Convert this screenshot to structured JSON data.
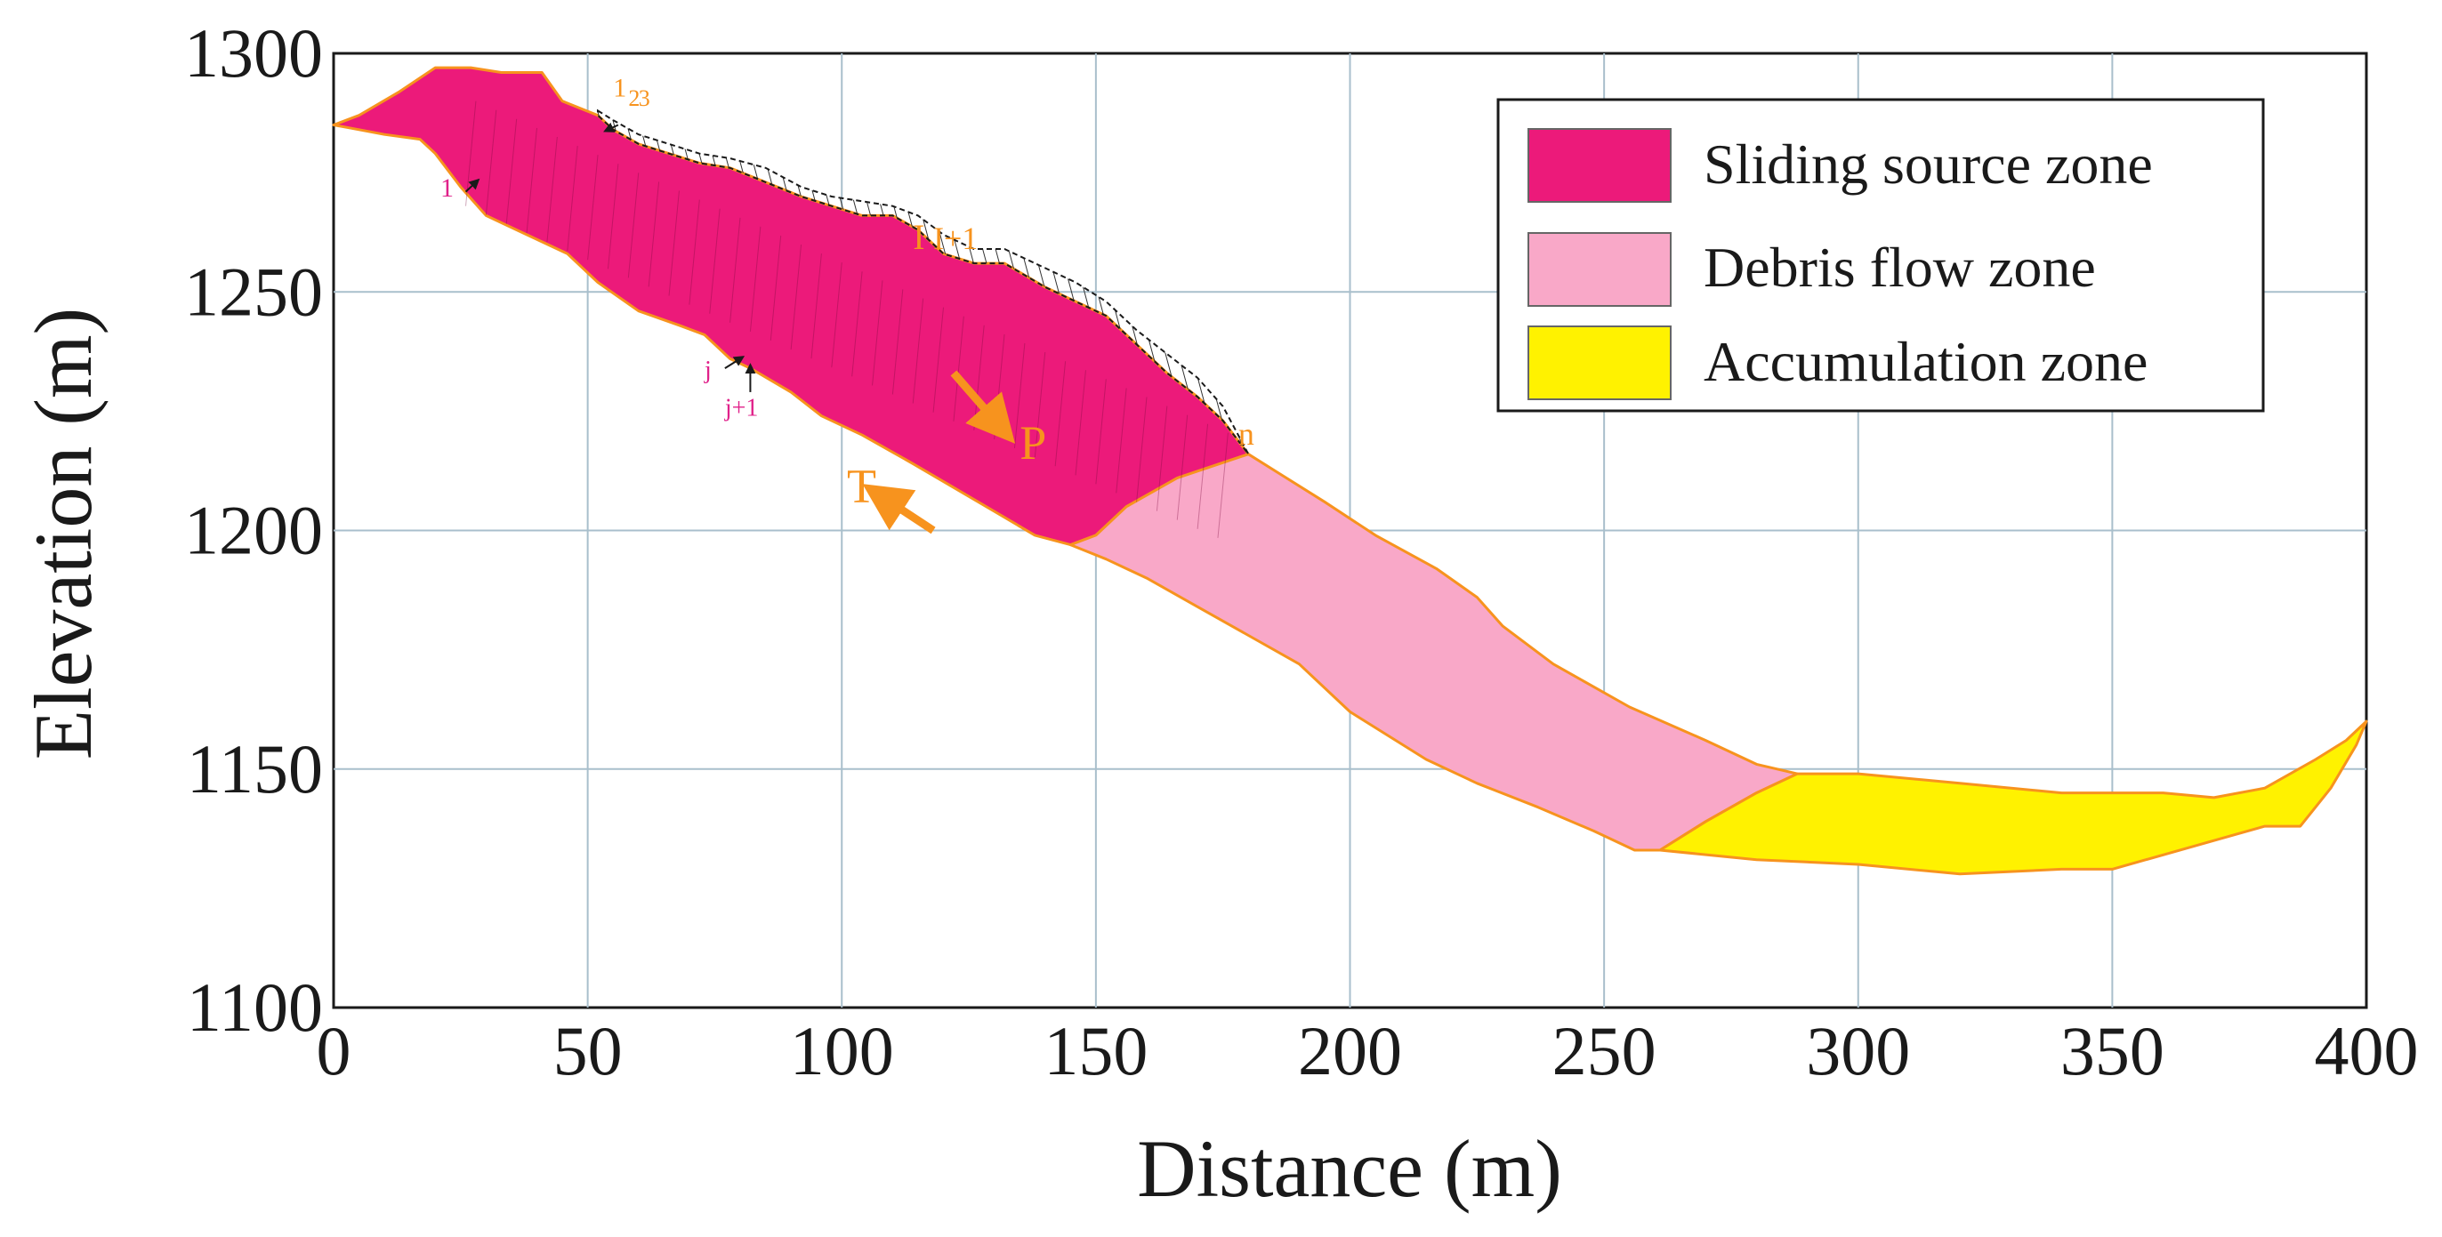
{
  "chart_data": {
    "type": "area",
    "title": "",
    "xlabel": "Distance (m)",
    "ylabel": "Elevation (m)",
    "xlim": [
      0,
      400
    ],
    "ylim": [
      1100,
      1300
    ],
    "xticks": [
      0,
      50,
      100,
      150,
      200,
      250,
      300,
      350,
      400
    ],
    "yticks": [
      1100,
      1150,
      1200,
      1250,
      1300
    ],
    "grid": true,
    "legend_position": "top-right",
    "colors": {
      "source": "#ec1a7a",
      "debris": "#f9a8c8",
      "accumulation": "#fff200",
      "boundary": "#f7931e",
      "annotation": "#f7931e",
      "annotation_pink": "#e0218a",
      "grid": "#a9bfcc"
    },
    "series": [
      {
        "name": "Sliding source zone",
        "color": "#ec1a7a",
        "points": [
          [
            0,
            1285
          ],
          [
            5,
            1287
          ],
          [
            13,
            1292
          ],
          [
            20,
            1297
          ],
          [
            27,
            1297
          ],
          [
            33,
            1296
          ],
          [
            41,
            1296
          ],
          [
            45,
            1290
          ],
          [
            52,
            1287
          ],
          [
            55,
            1284
          ],
          [
            60,
            1281
          ],
          [
            66,
            1279
          ],
          [
            72,
            1277
          ],
          [
            78,
            1276
          ],
          [
            85,
            1273
          ],
          [
            92,
            1270
          ],
          [
            98,
            1268
          ],
          [
            104,
            1266
          ],
          [
            110,
            1266
          ],
          [
            115,
            1263
          ],
          [
            120,
            1258
          ],
          [
            126,
            1256
          ],
          [
            132,
            1256
          ],
          [
            140,
            1251
          ],
          [
            146,
            1248
          ],
          [
            152,
            1245
          ],
          [
            158,
            1239
          ],
          [
            164,
            1233
          ],
          [
            170,
            1228
          ],
          [
            175,
            1223
          ],
          [
            180,
            1216
          ],
          [
            166,
            1211
          ],
          [
            156,
            1205
          ],
          [
            150,
            1199
          ],
          [
            145,
            1197
          ],
          [
            138,
            1199
          ],
          [
            130,
            1204
          ],
          [
            122,
            1209
          ],
          [
            114,
            1214
          ],
          [
            104,
            1220
          ],
          [
            96,
            1224
          ],
          [
            90,
            1229
          ],
          [
            82,
            1234
          ],
          [
            78,
            1236
          ],
          [
            73,
            1241
          ],
          [
            68,
            1243
          ],
          [
            60,
            1246
          ],
          [
            52,
            1252
          ],
          [
            46,
            1258
          ],
          [
            38,
            1262
          ],
          [
            30,
            1266
          ],
          [
            25,
            1272
          ],
          [
            20,
            1279
          ],
          [
            17,
            1282
          ],
          [
            10,
            1283
          ],
          [
            5,
            1284
          ],
          [
            0,
            1285
          ]
        ]
      },
      {
        "name": "Debris flow zone",
        "color": "#f9a8c8",
        "points": [
          [
            145,
            1197
          ],
          [
            150,
            1199
          ],
          [
            156,
            1205
          ],
          [
            166,
            1211
          ],
          [
            180,
            1216
          ],
          [
            186,
            1212
          ],
          [
            195,
            1206
          ],
          [
            205,
            1199
          ],
          [
            217,
            1192
          ],
          [
            225,
            1186
          ],
          [
            230,
            1180
          ],
          [
            240,
            1172
          ],
          [
            255,
            1163
          ],
          [
            270,
            1156
          ],
          [
            280,
            1151
          ],
          [
            288,
            1149
          ],
          [
            280,
            1145
          ],
          [
            270,
            1139
          ],
          [
            261,
            1133
          ],
          [
            256,
            1133
          ],
          [
            248,
            1137
          ],
          [
            237,
            1142
          ],
          [
            225,
            1147
          ],
          [
            215,
            1152
          ],
          [
            200,
            1162
          ],
          [
            190,
            1172
          ],
          [
            180,
            1178
          ],
          [
            170,
            1184
          ],
          [
            160,
            1190
          ],
          [
            152,
            1194
          ],
          [
            145,
            1197
          ]
        ]
      },
      {
        "name": "Accumulation zone",
        "color": "#fff200",
        "points": [
          [
            261,
            1133
          ],
          [
            270,
            1139
          ],
          [
            280,
            1145
          ],
          [
            288,
            1149
          ],
          [
            300,
            1149
          ],
          [
            320,
            1147
          ],
          [
            340,
            1145
          ],
          [
            360,
            1145
          ],
          [
            370,
            1144
          ],
          [
            380,
            1146
          ],
          [
            390,
            1152
          ],
          [
            396,
            1156
          ],
          [
            400,
            1160
          ],
          [
            398,
            1155
          ],
          [
            393,
            1146
          ],
          [
            387,
            1138
          ],
          [
            380,
            1138
          ],
          [
            370,
            1135
          ],
          [
            350,
            1129
          ],
          [
            340,
            1129
          ],
          [
            320,
            1128
          ],
          [
            300,
            1130
          ],
          [
            280,
            1131
          ],
          [
            261,
            1133
          ]
        ]
      }
    ],
    "legend": [
      {
        "label": "Sliding source zone",
        "color": "#ec1a7a"
      },
      {
        "label": "Debris flow zone",
        "color": "#f9a8c8"
      },
      {
        "label": "Accumulation zone",
        "color": "#fff200"
      }
    ],
    "hatched_top_layer": {
      "name": "surface layer (hatched)",
      "points": [
        [
          52,
          1288
        ],
        [
          55,
          1286
        ],
        [
          60,
          1283
        ],
        [
          66,
          1281
        ],
        [
          72,
          1279
        ],
        [
          78,
          1278
        ],
        [
          85,
          1276
        ],
        [
          92,
          1272
        ],
        [
          98,
          1270
        ],
        [
          104,
          1269
        ],
        [
          110,
          1268
        ],
        [
          115,
          1266
        ],
        [
          120,
          1262
        ],
        [
          126,
          1259
        ],
        [
          132,
          1259
        ],
        [
          140,
          1255
        ],
        [
          146,
          1252
        ],
        [
          152,
          1248
        ],
        [
          158,
          1242
        ],
        [
          164,
          1237
        ],
        [
          170,
          1232
        ],
        [
          175,
          1226
        ],
        [
          180,
          1216
        ]
      ]
    },
    "annotations": [
      {
        "id": "label-1-left",
        "text": "1",
        "x": 21,
        "y": 1270,
        "color": "#e0218a"
      },
      {
        "id": "label-1-top",
        "text": "1",
        "x": 55,
        "y": 1291,
        "color": "#f7931e"
      },
      {
        "id": "label-2-top",
        "text": "2",
        "x": 58,
        "y": 1289,
        "color": "#f7931e"
      },
      {
        "id": "label-3-top",
        "text": "3",
        "x": 60,
        "y": 1289,
        "color": "#f7931e"
      },
      {
        "id": "label-i",
        "text": "I",
        "x": 114,
        "y": 1259,
        "color": "#f7931e"
      },
      {
        "id": "label-i-plus-1",
        "text": "I+1",
        "x": 118,
        "y": 1259,
        "color": "#f7931e"
      },
      {
        "id": "label-n",
        "text": "n",
        "x": 178,
        "y": 1218,
        "color": "#f7931e"
      },
      {
        "id": "label-j",
        "text": "j",
        "x": 73,
        "y": 1232,
        "color": "#e0218a"
      },
      {
        "id": "label-j-plus-1",
        "text": "j+1",
        "x": 77,
        "y": 1224,
        "color": "#e0218a"
      },
      {
        "id": "label-P",
        "text": "P",
        "x": 135,
        "y": 1215,
        "color": "#f7931e"
      },
      {
        "id": "label-T",
        "text": "T",
        "x": 101,
        "y": 1206,
        "color": "#f7931e"
      }
    ]
  }
}
